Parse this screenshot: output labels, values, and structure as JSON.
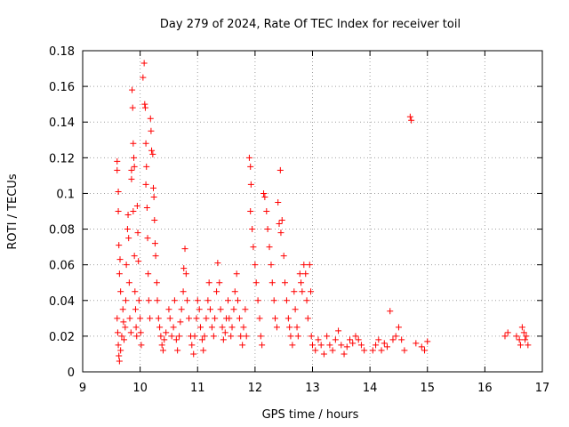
{
  "chart_data": {
    "type": "scatter",
    "title": "Day 279 of 2024, Rate Of TEC Index for receiver toil",
    "xlabel": "GPS time / hours",
    "ylabel": "ROTI / TECUs",
    "xlim": [
      9,
      17
    ],
    "ylim": [
      0,
      0.18
    ],
    "xticks": [
      9,
      10,
      11,
      12,
      13,
      14,
      15,
      16,
      17
    ],
    "yticks": [
      0,
      0.02,
      0.04,
      0.06,
      0.08,
      0.1,
      0.12,
      0.14,
      0.16,
      0.18
    ],
    "xtick_labels": [
      "9",
      "10",
      "11",
      "12",
      "13",
      "14",
      "15",
      "16",
      "17"
    ],
    "ytick_labels": [
      "0",
      "0.02",
      "0.04",
      "0.06",
      "0.08",
      "0.1",
      "0.12",
      "0.14",
      "0.16",
      "0.18"
    ],
    "grid": true,
    "marker": "+",
    "marker_color": "#ff0000",
    "series": [
      {
        "name": "ROTI",
        "points": [
          [
            9.6,
            0.118
          ],
          [
            9.6,
            0.113
          ],
          [
            9.62,
            0.101
          ],
          [
            9.62,
            0.09
          ],
          [
            9.63,
            0.071
          ],
          [
            9.65,
            0.063
          ],
          [
            9.64,
            0.055
          ],
          [
            9.66,
            0.045
          ],
          [
            9.6,
            0.03
          ],
          [
            9.61,
            0.022
          ],
          [
            9.62,
            0.015
          ],
          [
            9.63,
            0.009
          ],
          [
            9.64,
            0.006
          ],
          [
            9.66,
            0.012
          ],
          [
            9.68,
            0.02
          ],
          [
            9.7,
            0.035
          ],
          [
            9.71,
            0.028
          ],
          [
            9.72,
            0.018
          ],
          [
            9.74,
            0.025
          ],
          [
            9.75,
            0.04
          ],
          [
            9.76,
            0.06
          ],
          [
            9.78,
            0.08
          ],
          [
            9.79,
            0.088
          ],
          [
            9.8,
            0.075
          ],
          [
            9.81,
            0.05
          ],
          [
            9.82,
            0.03
          ],
          [
            9.84,
            0.022
          ],
          [
            9.85,
            0.113
          ],
          [
            9.85,
            0.108
          ],
          [
            9.86,
            0.158
          ],
          [
            9.87,
            0.148
          ],
          [
            9.88,
            0.128
          ],
          [
            9.89,
            0.12
          ],
          [
            9.9,
            0.115
          ],
          [
            9.88,
            0.09
          ],
          [
            9.9,
            0.065
          ],
          [
            9.91,
            0.045
          ],
          [
            9.92,
            0.035
          ],
          [
            9.93,
            0.025
          ],
          [
            9.94,
            0.02
          ],
          [
            9.95,
            0.093
          ],
          [
            9.96,
            0.078
          ],
          [
            9.97,
            0.062
          ],
          [
            9.98,
            0.04
          ],
          [
            10.0,
            0.03
          ],
          [
            10.01,
            0.022
          ],
          [
            10.02,
            0.015
          ],
          [
            10.05,
            0.165
          ],
          [
            10.07,
            0.173
          ],
          [
            10.08,
            0.15
          ],
          [
            10.09,
            0.148
          ],
          [
            10.1,
            0.128
          ],
          [
            10.11,
            0.115
          ],
          [
            10.1,
            0.105
          ],
          [
            10.12,
            0.092
          ],
          [
            10.13,
            0.075
          ],
          [
            10.14,
            0.055
          ],
          [
            10.15,
            0.04
          ],
          [
            10.17,
            0.03
          ],
          [
            10.18,
            0.142
          ],
          [
            10.19,
            0.135
          ],
          [
            10.2,
            0.124
          ],
          [
            10.22,
            0.122
          ],
          [
            10.23,
            0.103
          ],
          [
            10.24,
            0.098
          ],
          [
            10.25,
            0.085
          ],
          [
            10.26,
            0.072
          ],
          [
            10.27,
            0.065
          ],
          [
            10.29,
            0.05
          ],
          [
            10.3,
            0.04
          ],
          [
            10.32,
            0.03
          ],
          [
            10.34,
            0.025
          ],
          [
            10.36,
            0.02
          ],
          [
            10.38,
            0.015
          ],
          [
            10.4,
            0.012
          ],
          [
            10.42,
            0.018
          ],
          [
            10.45,
            0.022
          ],
          [
            10.5,
            0.035
          ],
          [
            10.52,
            0.03
          ],
          [
            10.55,
            0.02
          ],
          [
            10.58,
            0.025
          ],
          [
            10.6,
            0.04
          ],
          [
            10.63,
            0.018
          ],
          [
            10.65,
            0.012
          ],
          [
            10.68,
            0.02
          ],
          [
            10.7,
            0.028
          ],
          [
            10.72,
            0.035
          ],
          [
            10.75,
            0.045
          ],
          [
            10.76,
            0.058
          ],
          [
            10.78,
            0.069
          ],
          [
            10.8,
            0.055
          ],
          [
            10.82,
            0.04
          ],
          [
            10.85,
            0.03
          ],
          [
            10.88,
            0.02
          ],
          [
            10.9,
            0.015
          ],
          [
            10.93,
            0.01
          ],
          [
            10.95,
            0.02
          ],
          [
            10.98,
            0.03
          ],
          [
            11.0,
            0.04
          ],
          [
            11.03,
            0.035
          ],
          [
            11.05,
            0.025
          ],
          [
            11.08,
            0.018
          ],
          [
            11.1,
            0.012
          ],
          [
            11.12,
            0.02
          ],
          [
            11.15,
            0.03
          ],
          [
            11.18,
            0.04
          ],
          [
            11.2,
            0.05
          ],
          [
            11.22,
            0.035
          ],
          [
            11.25,
            0.025
          ],
          [
            11.28,
            0.02
          ],
          [
            11.3,
            0.03
          ],
          [
            11.33,
            0.045
          ],
          [
            11.35,
            0.061
          ],
          [
            11.38,
            0.05
          ],
          [
            11.4,
            0.035
          ],
          [
            11.43,
            0.025
          ],
          [
            11.45,
            0.018
          ],
          [
            11.48,
            0.022
          ],
          [
            11.5,
            0.03
          ],
          [
            11.53,
            0.04
          ],
          [
            11.55,
            0.03
          ],
          [
            11.58,
            0.02
          ],
          [
            11.6,
            0.025
          ],
          [
            11.63,
            0.035
          ],
          [
            11.65,
            0.045
          ],
          [
            11.68,
            0.055
          ],
          [
            11.7,
            0.04
          ],
          [
            11.73,
            0.03
          ],
          [
            11.75,
            0.02
          ],
          [
            11.78,
            0.015
          ],
          [
            11.8,
            0.025
          ],
          [
            11.83,
            0.035
          ],
          [
            11.85,
            0.02
          ],
          [
            11.9,
            0.12
          ],
          [
            11.92,
            0.115
          ],
          [
            11.93,
            0.105
          ],
          [
            11.92,
            0.09
          ],
          [
            11.95,
            0.08
          ],
          [
            11.97,
            0.07
          ],
          [
            12.0,
            0.06
          ],
          [
            12.02,
            0.05
          ],
          [
            12.05,
            0.04
          ],
          [
            12.08,
            0.03
          ],
          [
            12.1,
            0.02
          ],
          [
            12.12,
            0.015
          ],
          [
            12.15,
            0.1
          ],
          [
            12.17,
            0.098
          ],
          [
            12.2,
            0.09
          ],
          [
            12.22,
            0.08
          ],
          [
            12.25,
            0.07
          ],
          [
            12.28,
            0.06
          ],
          [
            12.3,
            0.05
          ],
          [
            12.33,
            0.04
          ],
          [
            12.35,
            0.03
          ],
          [
            12.38,
            0.025
          ],
          [
            12.4,
            0.095
          ],
          [
            12.42,
            0.083
          ],
          [
            12.44,
            0.113
          ],
          [
            12.45,
            0.078
          ],
          [
            12.47,
            0.085
          ],
          [
            12.5,
            0.065
          ],
          [
            12.52,
            0.05
          ],
          [
            12.55,
            0.04
          ],
          [
            12.58,
            0.03
          ],
          [
            12.6,
            0.025
          ],
          [
            12.62,
            0.02
          ],
          [
            12.65,
            0.015
          ],
          [
            12.68,
            0.045
          ],
          [
            12.7,
            0.035
          ],
          [
            12.73,
            0.025
          ],
          [
            12.75,
            0.02
          ],
          [
            12.78,
            0.055
          ],
          [
            12.8,
            0.05
          ],
          [
            12.82,
            0.045
          ],
          [
            12.85,
            0.06
          ],
          [
            12.88,
            0.055
          ],
          [
            12.9,
            0.04
          ],
          [
            12.92,
            0.03
          ],
          [
            12.95,
            0.06
          ],
          [
            12.97,
            0.045
          ],
          [
            12.98,
            0.02
          ],
          [
            13.0,
            0.015
          ],
          [
            13.05,
            0.012
          ],
          [
            13.1,
            0.018
          ],
          [
            13.15,
            0.015
          ],
          [
            13.2,
            0.01
          ],
          [
            13.25,
            0.02
          ],
          [
            13.3,
            0.015
          ],
          [
            13.35,
            0.012
          ],
          [
            13.4,
            0.018
          ],
          [
            13.45,
            0.023
          ],
          [
            13.5,
            0.015
          ],
          [
            13.55,
            0.01
          ],
          [
            13.6,
            0.014
          ],
          [
            13.65,
            0.018
          ],
          [
            13.7,
            0.016
          ],
          [
            13.75,
            0.02
          ],
          [
            13.8,
            0.018
          ],
          [
            13.85,
            0.015
          ],
          [
            13.9,
            0.012
          ],
          [
            14.05,
            0.012
          ],
          [
            14.1,
            0.015
          ],
          [
            14.15,
            0.018
          ],
          [
            14.2,
            0.012
          ],
          [
            14.25,
            0.016
          ],
          [
            14.3,
            0.014
          ],
          [
            14.35,
            0.034
          ],
          [
            14.4,
            0.018
          ],
          [
            14.45,
            0.02
          ],
          [
            14.5,
            0.025
          ],
          [
            14.55,
            0.018
          ],
          [
            14.6,
            0.012
          ],
          [
            14.7,
            0.143
          ],
          [
            14.72,
            0.141
          ],
          [
            14.8,
            0.016
          ],
          [
            14.9,
            0.014
          ],
          [
            14.95,
            0.012
          ],
          [
            15.0,
            0.017
          ],
          [
            16.35,
            0.02
          ],
          [
            16.4,
            0.022
          ],
          [
            16.55,
            0.02
          ],
          [
            16.6,
            0.018
          ],
          [
            16.62,
            0.015
          ],
          [
            16.65,
            0.025
          ],
          [
            16.68,
            0.022
          ],
          [
            16.7,
            0.018
          ],
          [
            16.72,
            0.02
          ],
          [
            16.75,
            0.015
          ]
        ]
      }
    ]
  }
}
